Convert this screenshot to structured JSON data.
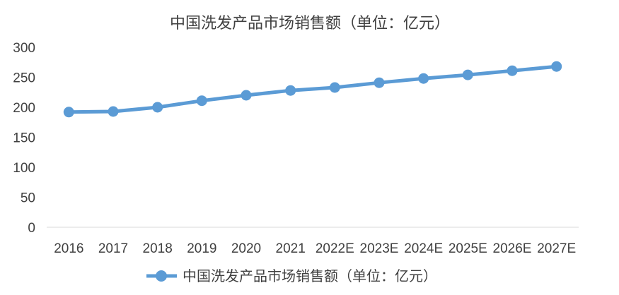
{
  "chart_data": {
    "type": "line",
    "title": "中国洗发产品市场销售额（单位：亿元）",
    "xlabel": "",
    "ylabel": "",
    "categories": [
      "2016",
      "2017",
      "2018",
      "2019",
      "2020",
      "2021",
      "2022E",
      "2023E",
      "2024E",
      "2025E",
      "2026E",
      "2027E"
    ],
    "series": [
      {
        "name": "中国洗发产品市场销售额（单位：亿元）",
        "values": [
          192,
          193,
          200,
          211,
          220,
          228,
          233,
          241,
          248,
          254,
          261,
          268
        ],
        "color": "#5B9BD5"
      }
    ],
    "ylim": [
      0,
      300
    ],
    "yticks": [
      "0",
      "50",
      "100",
      "150",
      "200",
      "250",
      "300"
    ],
    "grid": false,
    "legend_position": "bottom",
    "marker": "circle"
  }
}
